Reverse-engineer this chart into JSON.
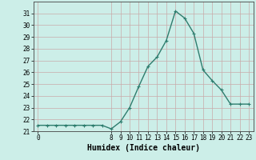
{
  "x": [
    0,
    1,
    2,
    3,
    4,
    5,
    6,
    7,
    8,
    9,
    10,
    11,
    12,
    13,
    14,
    15,
    16,
    17,
    18,
    19,
    20,
    21,
    22,
    23
  ],
  "y": [
    21.5,
    21.5,
    21.5,
    21.5,
    21.5,
    21.5,
    21.5,
    21.5,
    21.2,
    21.8,
    23.0,
    24.8,
    26.5,
    27.3,
    28.7,
    31.2,
    30.6,
    29.3,
    26.2,
    25.3,
    24.5,
    23.3,
    23.3,
    23.3
  ],
  "line_color": "#2e7d6e",
  "marker": "+",
  "bg_color": "#cceee8",
  "grid_color": "#c8aaaa",
  "xlabel": "Humidex (Indice chaleur)",
  "xlabel_fontsize": 7,
  "ylim": [
    21,
    32
  ],
  "xlim": [
    -0.5,
    23.5
  ],
  "yticks": [
    21,
    22,
    23,
    24,
    25,
    26,
    27,
    28,
    29,
    30,
    31
  ],
  "xtick_positions": [
    0,
    8,
    9,
    10,
    11,
    12,
    13,
    14,
    15,
    16,
    17,
    18,
    19,
    20,
    21,
    22,
    23
  ],
  "xtick_labels": [
    "0",
    "8",
    "9",
    "10",
    "11",
    "12",
    "13",
    "14",
    "15",
    "16",
    "17",
    "18",
    "19",
    "20",
    "21",
    "22",
    "23"
  ],
  "tick_fontsize": 5.5,
  "line_width": 1.0,
  "marker_size": 3.5,
  "marker_ew": 0.8
}
